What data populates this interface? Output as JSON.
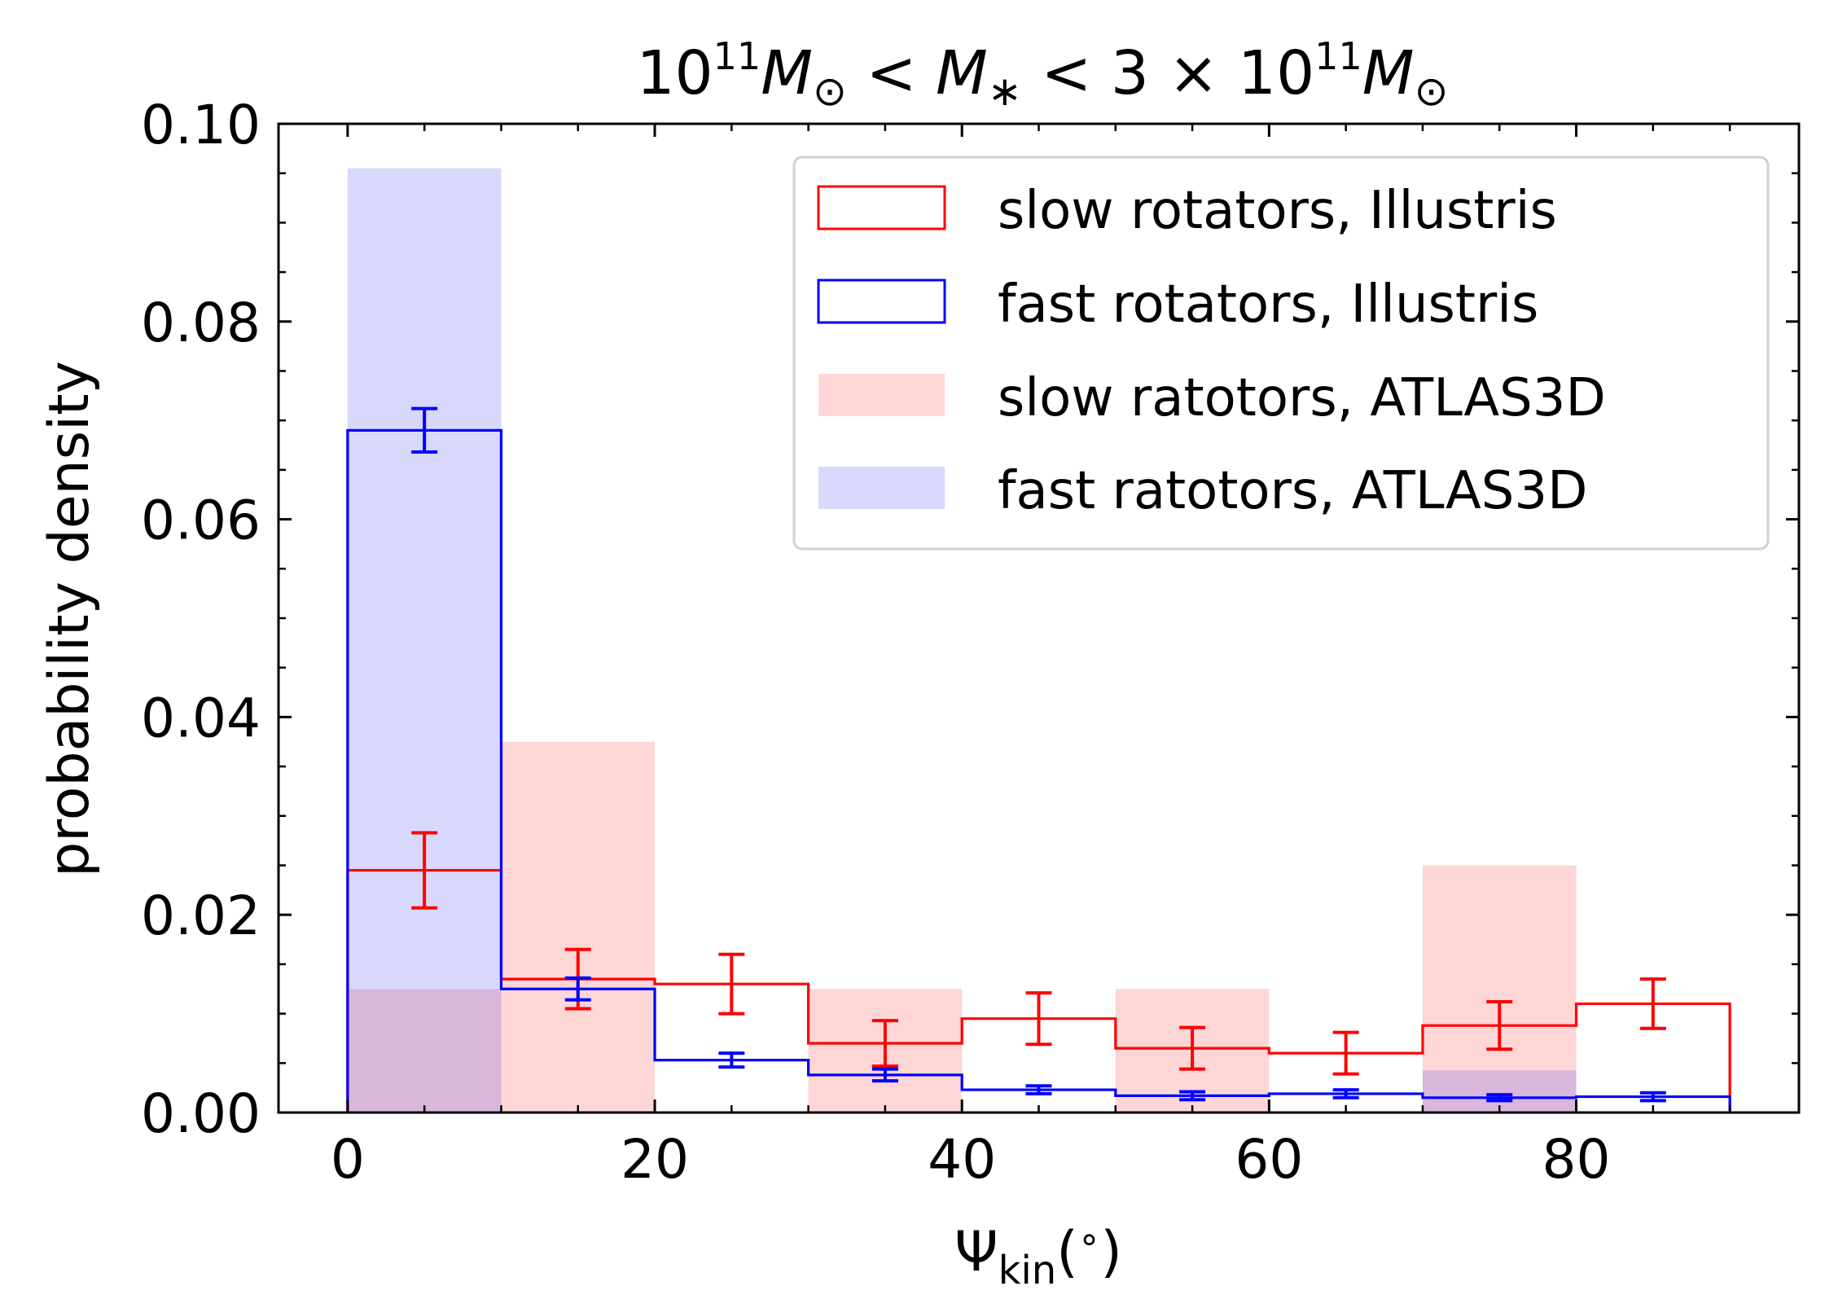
{
  "chart_data": {
    "type": "bar",
    "title": {
      "base1": "10",
      "sup1": "11",
      "m1": "M",
      "sun1": "⊙",
      "lt1": "<",
      "mstar": "M",
      "star": "∗",
      "lt2": "<",
      "three": "3",
      "times": "×",
      "base2": "10",
      "sup2": "11",
      "m2": "M",
      "sun2": "⊙"
    },
    "xlabel": {
      "psi": "Ψ",
      "sub": "kin",
      "open": "(",
      "deg": "∘",
      "close": ")"
    },
    "ylabel": "probability density",
    "xlim": [
      -4.5,
      94.5
    ],
    "ylim": [
      0,
      0.1
    ],
    "x_ticks": [
      0,
      20,
      40,
      60,
      80
    ],
    "x_tick_labels": [
      "0",
      "20",
      "40",
      "60",
      "80"
    ],
    "y_ticks": [
      0,
      0.02,
      0.04,
      0.06,
      0.08,
      0.1
    ],
    "y_tick_labels": [
      "0.00",
      "0.02",
      "0.04",
      "0.06",
      "0.08",
      "0.10"
    ],
    "bin_edges": [
      0,
      10,
      20,
      30,
      40,
      50,
      60,
      70,
      80,
      90
    ],
    "series": [
      {
        "name": "slow rotators, Illustris",
        "style": "step",
        "color": "#ff0000",
        "values": [
          0.0245,
          0.0135,
          0.013,
          0.007,
          0.0095,
          0.0065,
          0.006,
          0.0088,
          0.011
        ],
        "errors": [
          0.0038,
          0.003,
          0.003,
          0.0023,
          0.0026,
          0.0021,
          0.0021,
          0.0024,
          0.0025
        ]
      },
      {
        "name": "fast rotators, Illustris",
        "style": "step",
        "color": "#0000ff",
        "values": [
          0.069,
          0.0125,
          0.0053,
          0.0038,
          0.0023,
          0.0017,
          0.0019,
          0.0015,
          0.0016
        ],
        "errors": [
          0.0022,
          0.0011,
          0.0007,
          0.0006,
          0.0004,
          0.0004,
          0.0004,
          0.0003,
          0.0004
        ]
      },
      {
        "name": "slow ratotors, ATLAS3D",
        "style": "filled",
        "color": "#ffd6d6",
        "values": [
          0.0125,
          0.0375,
          0.0,
          0.0125,
          0.0,
          0.0125,
          0.0,
          0.025,
          0.0
        ]
      },
      {
        "name": "fast ratotors, ATLAS3D",
        "style": "filled",
        "color": "#d8d8fc",
        "values": [
          0.0955,
          0.0,
          0.0,
          0.0,
          0.0,
          0.0,
          0.0,
          0.0043,
          0.0
        ]
      }
    ],
    "overlap_color": "#d9b7dc",
    "legend_position": "top-right",
    "grid": false
  }
}
